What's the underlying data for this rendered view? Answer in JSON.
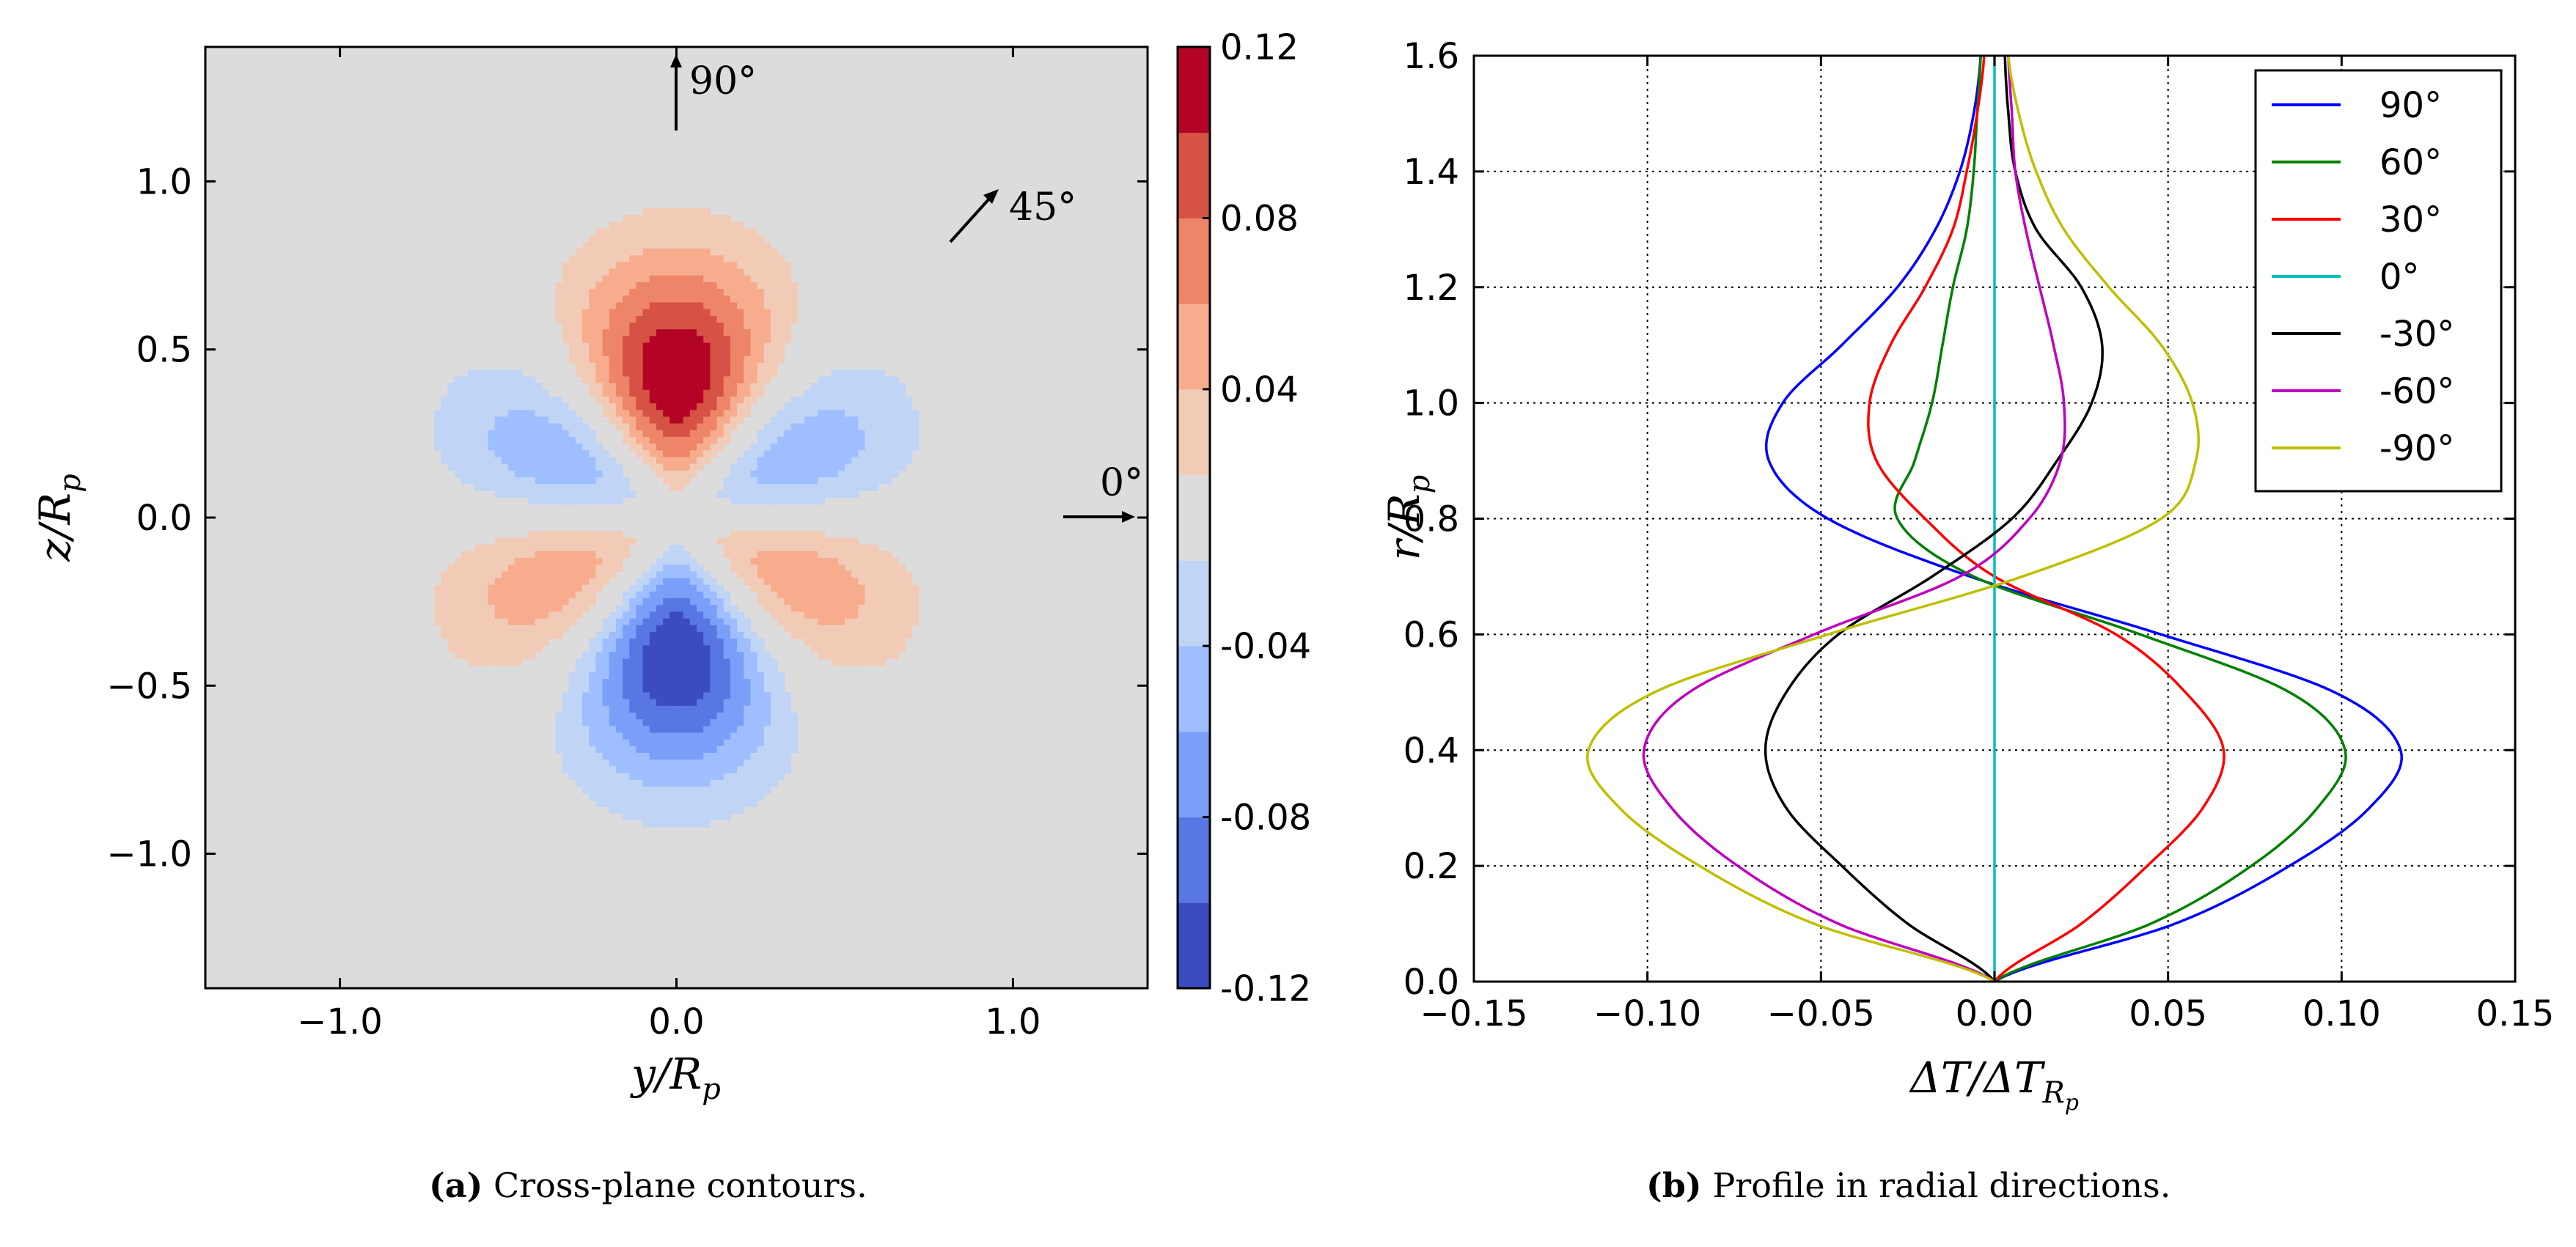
{
  "chart_data": [
    {
      "type": "heatmap",
      "subtype": "filled-contour",
      "xlabel": "y/R",
      "xlabel_sub": "p",
      "ylabel": "z/R",
      "ylabel_sub": "p",
      "xlim": [
        -1.4,
        1.4
      ],
      "ylim": [
        -1.4,
        1.4
      ],
      "xticks": [
        -1.0,
        0.0,
        1.0
      ],
      "xtick_labels": [
        "−1.0",
        "0.0",
        "1.0"
      ],
      "yticks": [
        1.0,
        0.5,
        0.0,
        -0.5,
        -1.0
      ],
      "ytick_labels": [
        "1.0",
        "0.5",
        "0.0",
        "−0.5",
        "−1.0"
      ],
      "colorbar": {
        "levels": [
          -0.12,
          -0.1,
          -0.08,
          -0.06,
          -0.04,
          -0.02,
          0.02,
          0.04,
          0.06,
          0.08,
          0.1,
          0.12
        ],
        "colors": [
          "#3b4cc0",
          "#5977e3",
          "#7b9ff9",
          "#9ebeff",
          "#c0d4f5",
          "#dcdcdc",
          "#f2cbb7",
          "#f7ac8e",
          "#ee8468",
          "#d65244",
          "#b40426"
        ],
        "tick_values": [
          0.12,
          0.08,
          0.04,
          -0.04,
          -0.08,
          -0.12
        ],
        "tick_labels": [
          "0.12",
          "0.08",
          "0.04",
          "-0.04",
          "-0.08",
          "-0.12"
        ]
      },
      "annotations": [
        {
          "text": "90°",
          "direction_deg": 90
        },
        {
          "text": "45°",
          "direction_deg": 45
        },
        {
          "text": "0°",
          "direction_deg": 0
        }
      ],
      "field_description": "Temperature difference contours in cross-plane; max +0.12 near (0, 0.38), min -0.12 near (0, -0.38)"
    },
    {
      "type": "line",
      "xlabel": "ΔT/ΔT",
      "xlabel_sub": "R",
      "xlabel_subsub": "p",
      "ylabel": "r/R",
      "ylabel_sub": "p",
      "xlim": [
        -0.15,
        0.15
      ],
      "ylim": [
        0.0,
        1.6
      ],
      "xticks": [
        -0.15,
        -0.1,
        -0.05,
        0.0,
        0.05,
        0.1,
        0.15
      ],
      "xtick_labels": [
        "−0.15",
        "−0.10",
        "−0.05",
        "0.00",
        "0.05",
        "0.10",
        "0.15"
      ],
      "yticks": [
        0.0,
        0.2,
        0.4,
        0.6,
        0.8,
        1.0,
        1.2,
        1.4,
        1.6
      ],
      "ytick_labels": [
        "0.0",
        "0.2",
        "0.4",
        "0.6",
        "0.8",
        "1.0",
        "1.2",
        "1.4",
        "1.6"
      ],
      "grid": true,
      "legend_position": "top-right",
      "series": [
        {
          "name": "90°",
          "color": "#0000ff",
          "amplitude": 1.0,
          "r": [
            0,
            0.1,
            0.2,
            0.3,
            0.4,
            0.5,
            0.6,
            0.7,
            0.8,
            0.9,
            1.0,
            1.1,
            1.2,
            1.3,
            1.4,
            1.5,
            1.6
          ],
          "values": [
            0.0,
            0.052,
            0.085,
            0.108,
            0.117,
            0.098,
            0.048,
            -0.007,
            -0.048,
            -0.065,
            -0.061,
            -0.044,
            -0.028,
            -0.017,
            -0.01,
            -0.006,
            -0.004
          ]
        },
        {
          "name": "60°",
          "color": "#008000",
          "amplitude": 0.866,
          "r": [
            0,
            0.1,
            0.2,
            0.3,
            0.4,
            0.5,
            0.6,
            0.7,
            0.8,
            0.9,
            1.0,
            1.1,
            1.2,
            1.3,
            1.4,
            1.5,
            1.6
          ],
          "values": [
            0.0,
            0.045,
            0.074,
            0.093,
            0.101,
            0.085,
            0.042,
            -0.006,
            -0.028,
            -0.023,
            -0.018,
            -0.015,
            -0.012,
            -0.008,
            -0.006,
            -0.005,
            -0.004
          ]
        },
        {
          "name": "30°",
          "color": "#ff0000",
          "amplitude": 0.5,
          "r": [
            0,
            0.1,
            0.2,
            0.3,
            0.4,
            0.5,
            0.6,
            0.7,
            0.8,
            0.9,
            1.0,
            1.1,
            1.2,
            1.3,
            1.4,
            1.5,
            1.6
          ],
          "values": [
            0.0,
            0.025,
            0.044,
            0.06,
            0.066,
            0.055,
            0.035,
            0.0,
            -0.02,
            -0.034,
            -0.036,
            -0.03,
            -0.02,
            -0.012,
            -0.008,
            -0.005,
            -0.003
          ]
        },
        {
          "name": "0°",
          "color": "#00bfbf",
          "amplitude": 0.0,
          "r": [
            0,
            1.6
          ],
          "values": [
            0.0,
            0.0
          ]
        },
        {
          "name": "-30°",
          "color": "#000000",
          "amplitude": -0.5,
          "r": [
            0,
            0.1,
            0.2,
            0.3,
            0.4,
            0.5,
            0.6,
            0.7,
            0.8,
            0.9,
            1.0,
            1.1,
            1.2,
            1.3,
            1.4,
            1.5,
            1.6
          ],
          "values": [
            0.0,
            -0.025,
            -0.044,
            -0.06,
            -0.066,
            -0.06,
            -0.045,
            -0.018,
            0.005,
            0.018,
            0.028,
            0.031,
            0.025,
            0.012,
            0.006,
            0.004,
            0.003
          ]
        },
        {
          "name": "-60°",
          "color": "#bf00bf",
          "amplitude": -0.866,
          "r": [
            0,
            0.1,
            0.2,
            0.3,
            0.4,
            0.5,
            0.6,
            0.7,
            0.8,
            0.9,
            1.0,
            1.1,
            1.2,
            1.3,
            1.4,
            1.5,
            1.6
          ],
          "values": [
            0.0,
            -0.045,
            -0.074,
            -0.093,
            -0.101,
            -0.088,
            -0.052,
            -0.01,
            0.01,
            0.019,
            0.02,
            0.017,
            0.013,
            0.009,
            0.006,
            0.005,
            0.004
          ]
        },
        {
          "name": "-90°",
          "color": "#bfbf00",
          "amplitude": -1.0,
          "r": [
            0,
            0.1,
            0.2,
            0.3,
            0.4,
            0.5,
            0.6,
            0.7,
            0.8,
            0.9,
            1.0,
            1.1,
            1.2,
            1.3,
            1.4,
            1.5,
            1.6
          ],
          "values": [
            0.0,
            -0.052,
            -0.085,
            -0.108,
            -0.117,
            -0.098,
            -0.048,
            0.008,
            0.048,
            0.058,
            0.057,
            0.048,
            0.033,
            0.02,
            0.012,
            0.007,
            0.004
          ]
        }
      ]
    }
  ],
  "captions": {
    "a_label": "(a)",
    "a_text": "Cross-plane contours.",
    "b_label": "(b)",
    "b_text": "Profile in radial directions."
  }
}
